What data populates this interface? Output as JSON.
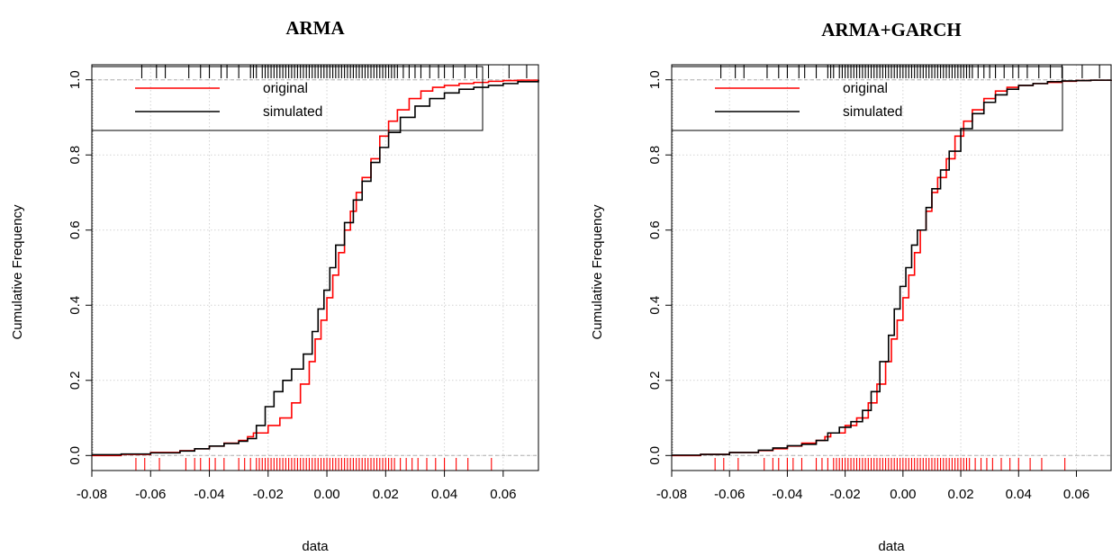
{
  "figure": {
    "panel_count": 2
  },
  "chart_data": [
    {
      "type": "line",
      "title": "ARMA",
      "xlabel": "data",
      "ylabel": "Cumulative Frequency",
      "xlim": [
        -0.08,
        0.072
      ],
      "ylim": [
        -0.04,
        1.04
      ],
      "xticks": [
        -0.08,
        -0.06,
        -0.04,
        -0.02,
        0.0,
        0.02,
        0.04,
        0.06
      ],
      "xtick_labels": [
        "-0.08",
        "-0.06",
        "-0.04",
        "-0.02",
        "0.00",
        "0.02",
        "0.04",
        "0.06"
      ],
      "yticks": [
        0.0,
        0.2,
        0.4,
        0.6,
        0.8,
        1.0
      ],
      "ytick_labels": [
        "0.0",
        "0.2",
        "0.4",
        "0.6",
        "0.8",
        "1.0"
      ],
      "grid": true,
      "legend": {
        "position": "top-left",
        "entries": [
          "original",
          "simulated"
        ]
      },
      "colors": {
        "original": "#ff0000",
        "simulated": "#000000"
      },
      "series": [
        {
          "name": "original",
          "x": [
            -0.08,
            -0.07,
            -0.06,
            -0.05,
            -0.045,
            -0.04,
            -0.035,
            -0.03,
            -0.027,
            -0.025,
            -0.02,
            -0.016,
            -0.012,
            -0.009,
            -0.006,
            -0.004,
            -0.002,
            0.0,
            0.002,
            0.004,
            0.006,
            0.008,
            0.01,
            0.012,
            0.015,
            0.018,
            0.021,
            0.024,
            0.028,
            0.032,
            0.036,
            0.04,
            0.045,
            0.05,
            0.055,
            0.06,
            0.065,
            0.072
          ],
          "y": [
            0.0,
            0.003,
            0.008,
            0.013,
            0.018,
            0.025,
            0.033,
            0.04,
            0.05,
            0.06,
            0.08,
            0.1,
            0.14,
            0.19,
            0.25,
            0.31,
            0.36,
            0.42,
            0.48,
            0.54,
            0.6,
            0.65,
            0.7,
            0.74,
            0.79,
            0.85,
            0.89,
            0.92,
            0.95,
            0.97,
            0.98,
            0.985,
            0.99,
            0.993,
            0.996,
            0.998,
            0.999,
            1.0
          ]
        },
        {
          "name": "simulated",
          "x": [
            -0.08,
            -0.07,
            -0.06,
            -0.05,
            -0.045,
            -0.04,
            -0.035,
            -0.03,
            -0.027,
            -0.024,
            -0.021,
            -0.018,
            -0.015,
            -0.012,
            -0.008,
            -0.005,
            -0.003,
            -0.001,
            0.001,
            0.003,
            0.006,
            0.009,
            0.012,
            0.015,
            0.018,
            0.021,
            0.025,
            0.03,
            0.035,
            0.04,
            0.045,
            0.05,
            0.055,
            0.06,
            0.065,
            0.072
          ],
          "y": [
            0.002,
            0.004,
            0.007,
            0.012,
            0.018,
            0.025,
            0.032,
            0.038,
            0.045,
            0.08,
            0.13,
            0.17,
            0.2,
            0.23,
            0.27,
            0.33,
            0.39,
            0.44,
            0.5,
            0.56,
            0.62,
            0.68,
            0.73,
            0.78,
            0.82,
            0.86,
            0.9,
            0.93,
            0.95,
            0.965,
            0.975,
            0.98,
            0.985,
            0.99,
            0.995,
            1.0
          ]
        }
      ]
    },
    {
      "type": "line",
      "title": "ARMA+GARCH",
      "xlabel": "data",
      "ylabel": "Cumulative Frequency",
      "xlim": [
        -0.08,
        0.072
      ],
      "ylim": [
        -0.04,
        1.04
      ],
      "xticks": [
        -0.08,
        -0.06,
        -0.04,
        -0.02,
        0.0,
        0.02,
        0.04,
        0.06
      ],
      "xtick_labels": [
        "-0.08",
        "-0.06",
        "-0.04",
        "-0.02",
        "0.00",
        "0.02",
        "0.04",
        "0.06"
      ],
      "yticks": [
        0.0,
        0.2,
        0.4,
        0.6,
        0.8,
        1.0
      ],
      "ytick_labels": [
        "0.0",
        "0.2",
        "0.4",
        "0.6",
        "0.8",
        "1.0"
      ],
      "grid": true,
      "legend": {
        "position": "top-left",
        "entries": [
          "original",
          "simulated"
        ]
      },
      "colors": {
        "original": "#ff0000",
        "simulated": "#000000"
      },
      "series": [
        {
          "name": "original",
          "x": [
            -0.08,
            -0.07,
            -0.06,
            -0.05,
            -0.045,
            -0.04,
            -0.035,
            -0.03,
            -0.027,
            -0.025,
            -0.02,
            -0.016,
            -0.012,
            -0.009,
            -0.006,
            -0.004,
            -0.002,
            0.0,
            0.002,
            0.004,
            0.006,
            0.008,
            0.01,
            0.012,
            0.015,
            0.018,
            0.021,
            0.024,
            0.028,
            0.032,
            0.036,
            0.04,
            0.045,
            0.05,
            0.055,
            0.06,
            0.065,
            0.072
          ],
          "y": [
            0.0,
            0.003,
            0.008,
            0.013,
            0.018,
            0.025,
            0.033,
            0.04,
            0.05,
            0.06,
            0.08,
            0.1,
            0.14,
            0.19,
            0.25,
            0.31,
            0.36,
            0.42,
            0.48,
            0.54,
            0.6,
            0.65,
            0.7,
            0.74,
            0.79,
            0.85,
            0.89,
            0.92,
            0.95,
            0.97,
            0.98,
            0.985,
            0.99,
            0.993,
            0.996,
            0.998,
            0.999,
            1.0
          ]
        },
        {
          "name": "simulated",
          "x": [
            -0.08,
            -0.07,
            -0.06,
            -0.05,
            -0.045,
            -0.04,
            -0.035,
            -0.03,
            -0.026,
            -0.022,
            -0.018,
            -0.014,
            -0.011,
            -0.008,
            -0.005,
            -0.003,
            -0.001,
            0.001,
            0.003,
            0.005,
            0.008,
            0.01,
            0.013,
            0.016,
            0.02,
            0.024,
            0.028,
            0.032,
            0.036,
            0.04,
            0.045,
            0.05,
            0.055,
            0.06,
            0.065,
            0.072
          ],
          "y": [
            0.001,
            0.003,
            0.008,
            0.014,
            0.02,
            0.026,
            0.03,
            0.04,
            0.06,
            0.075,
            0.09,
            0.12,
            0.17,
            0.25,
            0.32,
            0.39,
            0.45,
            0.5,
            0.56,
            0.6,
            0.66,
            0.71,
            0.76,
            0.81,
            0.87,
            0.91,
            0.94,
            0.96,
            0.975,
            0.985,
            0.99,
            0.995,
            0.997,
            0.998,
            0.999,
            1.0
          ]
        }
      ]
    }
  ]
}
